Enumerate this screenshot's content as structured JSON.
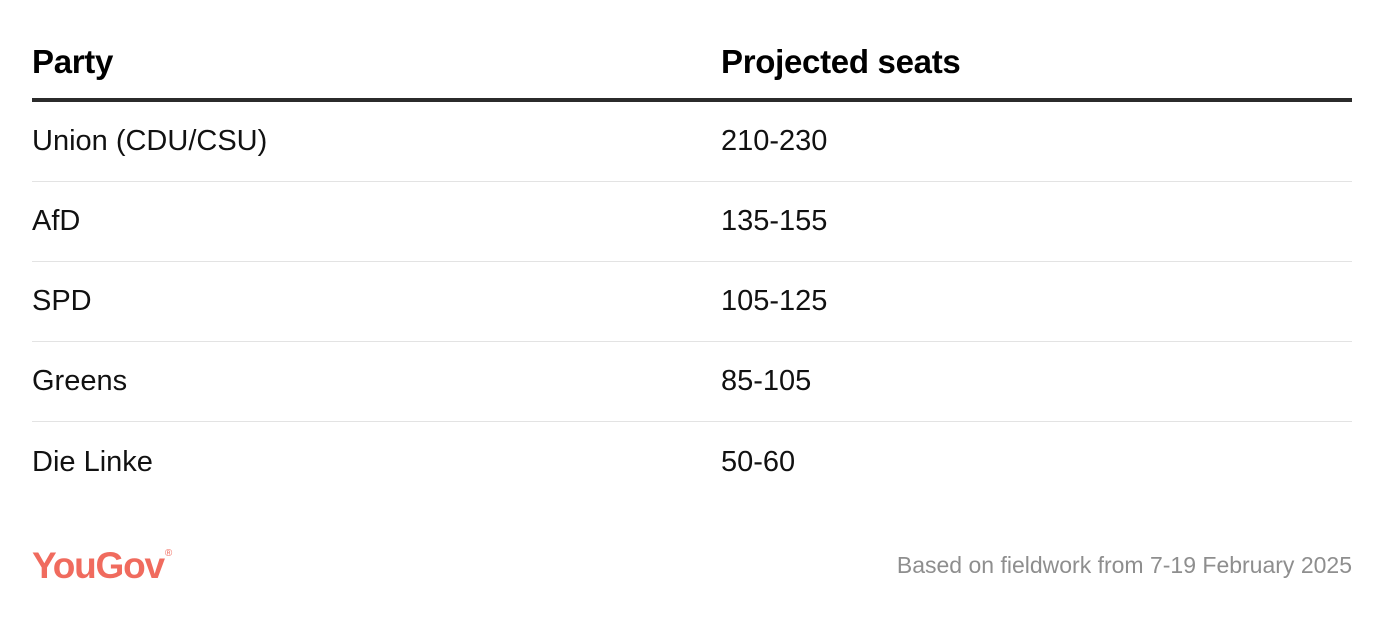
{
  "chart_data": {
    "type": "table",
    "columns": [
      "Party",
      "Projected seats"
    ],
    "rows": [
      {
        "party": "Union (CDU/CSU)",
        "seats": "210-230"
      },
      {
        "party": "AfD",
        "seats": "135-155"
      },
      {
        "party": "SPD",
        "seats": "105-125"
      },
      {
        "party": "Greens",
        "seats": "85-105"
      },
      {
        "party": "Die Linke",
        "seats": "50-60"
      }
    ]
  },
  "footer": {
    "brand": "YouGov",
    "brand_mark": "®",
    "brand_color": "#f06b5e",
    "note": "Based on fieldwork from 7-19 February 2025"
  }
}
